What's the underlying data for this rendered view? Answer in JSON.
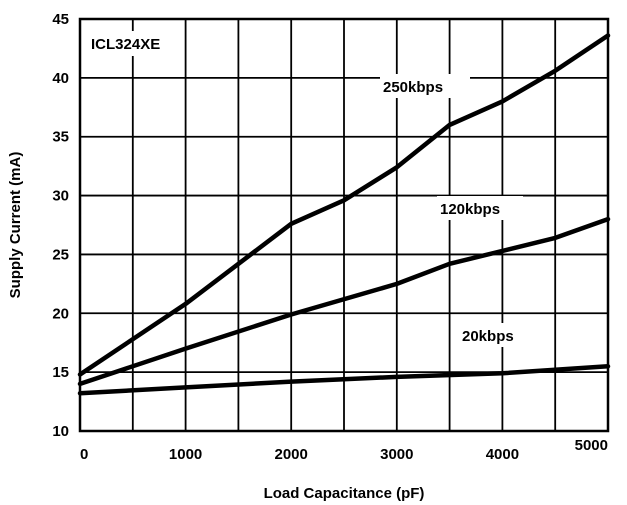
{
  "chart_data": {
    "type": "line",
    "annotation": "ICL324XE",
    "xlabel": "Load Capacitance (pF)",
    "ylabel": "Supply Current (mA)",
    "xlim": [
      0,
      5000
    ],
    "ylim": [
      10,
      45
    ],
    "xticks": [
      0,
      1000,
      2000,
      3000,
      4000,
      5000
    ],
    "yticks": [
      10,
      15,
      20,
      25,
      30,
      35,
      40,
      45
    ],
    "grid": true,
    "legend": "none",
    "line_color": "#000000",
    "series": [
      {
        "name": "250kbps",
        "x": [
          0,
          1000,
          2000,
          2500,
          3000,
          3500,
          4000,
          4500,
          5000
        ],
        "y": [
          14.8,
          20.8,
          27.6,
          29.6,
          32.4,
          36.0,
          38.0,
          40.6,
          43.6
        ]
      },
      {
        "name": "120kbps",
        "x": [
          0,
          1000,
          2000,
          3000,
          3500,
          4000,
          4500,
          5000
        ],
        "y": [
          14.0,
          17.0,
          19.9,
          22.5,
          24.2,
          25.3,
          26.4,
          28.0
        ]
      },
      {
        "name": "20kbps",
        "x": [
          0,
          1000,
          2000,
          3000,
          4000,
          5000
        ],
        "y": [
          13.2,
          13.7,
          14.2,
          14.6,
          14.9,
          15.5
        ]
      }
    ]
  }
}
